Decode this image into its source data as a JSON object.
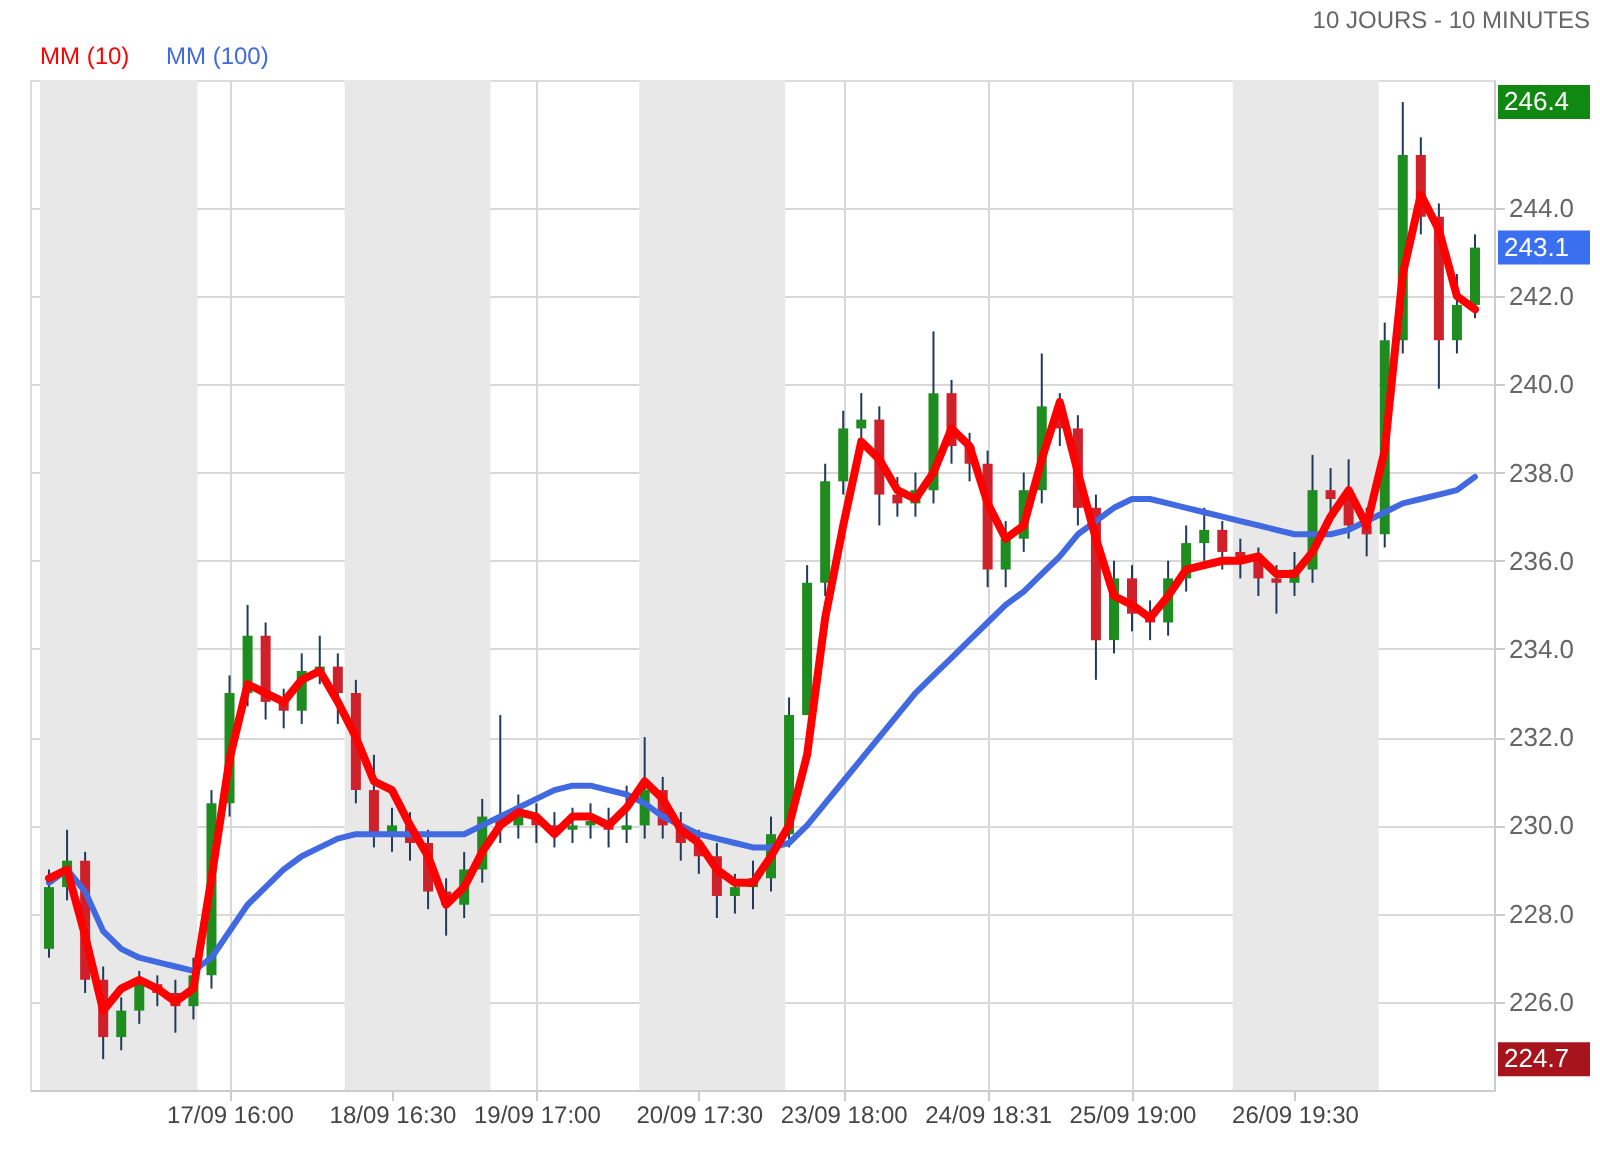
{
  "chart_data": {
    "type": "candlestick",
    "annotations": [
      "10 JOURS - 10 MINUTES",
      "246.4",
      "243.1",
      "224.7"
    ],
    "categories": [
      null,
      null,
      null,
      null,
      null,
      null,
      null,
      null,
      null,
      null,
      "17/09 16:00",
      null,
      null,
      null,
      null,
      null,
      null,
      null,
      null,
      "18/09 16:30",
      null,
      null,
      null,
      null,
      null,
      null,
      null,
      "19/09 17:00",
      null,
      null,
      null,
      null,
      null,
      null,
      null,
      null,
      "20/09 17:30",
      null,
      null,
      null,
      null,
      null,
      null,
      null,
      "23/09 18:00",
      null,
      null,
      null,
      null,
      null,
      null,
      null,
      "24/09 18:31",
      null,
      null,
      null,
      null,
      null,
      null,
      null,
      "25/09 19:00",
      null,
      null,
      null,
      null,
      null,
      null,
      null,
      null,
      "26/09 19:30",
      null,
      null,
      null,
      null,
      null,
      null,
      null,
      null,
      null,
      null
    ],
    "ohlc": [
      [
        227.2,
        229.0,
        227.0,
        228.6
      ],
      [
        228.6,
        229.9,
        228.3,
        229.2
      ],
      [
        229.2,
        229.4,
        226.2,
        226.5
      ],
      [
        226.5,
        226.8,
        224.7,
        225.2
      ],
      [
        225.2,
        226.1,
        224.9,
        225.8
      ],
      [
        225.8,
        226.7,
        225.5,
        226.4
      ],
      [
        226.4,
        226.6,
        225.9,
        226.2
      ],
      [
        226.2,
        226.5,
        225.3,
        225.9
      ],
      [
        225.9,
        227.0,
        225.6,
        226.6
      ],
      [
        226.6,
        230.8,
        226.3,
        230.5
      ],
      [
        230.5,
        233.4,
        230.2,
        233.0
      ],
      [
        233.0,
        235.0,
        232.7,
        234.3
      ],
      [
        234.3,
        234.6,
        232.4,
        232.8
      ],
      [
        232.8,
        233.1,
        232.2,
        232.6
      ],
      [
        232.6,
        233.9,
        232.3,
        233.5
      ],
      [
        233.5,
        234.3,
        233.2,
        233.6
      ],
      [
        233.6,
        233.9,
        232.3,
        233.0
      ],
      [
        233.0,
        233.3,
        230.5,
        230.8
      ],
      [
        230.8,
        231.6,
        229.5,
        229.8
      ],
      [
        229.8,
        230.4,
        229.4,
        230.0
      ],
      [
        230.0,
        230.3,
        229.2,
        229.6
      ],
      [
        229.6,
        229.9,
        228.1,
        228.5
      ],
      [
        228.5,
        228.8,
        227.5,
        228.2
      ],
      [
        228.2,
        229.4,
        227.9,
        229.0
      ],
      [
        229.0,
        230.6,
        228.7,
        230.2
      ],
      [
        230.2,
        232.5,
        229.6,
        230.0
      ],
      [
        230.0,
        230.7,
        229.7,
        230.2
      ],
      [
        230.2,
        230.5,
        229.6,
        230.0
      ],
      [
        230.0,
        230.3,
        229.5,
        229.9
      ],
      [
        229.9,
        230.4,
        229.6,
        230.0
      ],
      [
        230.0,
        230.5,
        229.7,
        230.1
      ],
      [
        230.1,
        230.4,
        229.5,
        229.9
      ],
      [
        229.9,
        230.9,
        229.6,
        230.0
      ],
      [
        230.0,
        232.0,
        229.7,
        230.8
      ],
      [
        230.8,
        231.1,
        229.7,
        230.0
      ],
      [
        230.0,
        230.3,
        229.2,
        229.6
      ],
      [
        229.6,
        229.9,
        228.9,
        229.3
      ],
      [
        229.3,
        229.6,
        227.9,
        228.4
      ],
      [
        228.4,
        228.9,
        228.0,
        228.6
      ],
      [
        228.6,
        229.2,
        228.1,
        228.8
      ],
      [
        228.8,
        230.2,
        228.5,
        229.8
      ],
      [
        229.8,
        232.9,
        229.5,
        232.5
      ],
      [
        232.5,
        235.9,
        232.5,
        235.5
      ],
      [
        235.5,
        238.2,
        235.2,
        237.8
      ],
      [
        237.8,
        239.4,
        237.5,
        239.0
      ],
      [
        239.0,
        239.8,
        238.7,
        239.2
      ],
      [
        239.2,
        239.5,
        236.8,
        237.5
      ],
      [
        237.5,
        237.9,
        237.0,
        237.3
      ],
      [
        237.3,
        238.0,
        237.0,
        237.6
      ],
      [
        237.6,
        241.2,
        237.3,
        239.8
      ],
      [
        239.8,
        240.1,
        238.2,
        238.6
      ],
      [
        238.6,
        238.9,
        237.8,
        238.2
      ],
      [
        238.2,
        238.5,
        235.4,
        235.8
      ],
      [
        235.8,
        236.9,
        235.4,
        236.5
      ],
      [
        236.5,
        238.0,
        236.2,
        237.6
      ],
      [
        237.6,
        240.7,
        237.3,
        239.5
      ],
      [
        239.5,
        239.8,
        238.6,
        239.0
      ],
      [
        239.0,
        239.3,
        236.8,
        237.2
      ],
      [
        237.2,
        237.5,
        233.3,
        234.2
      ],
      [
        234.2,
        236.0,
        233.9,
        235.6
      ],
      [
        235.6,
        235.9,
        234.4,
        234.8
      ],
      [
        234.8,
        235.1,
        234.2,
        234.6
      ],
      [
        234.6,
        236.0,
        234.3,
        235.6
      ],
      [
        235.6,
        236.8,
        235.3,
        236.4
      ],
      [
        236.4,
        237.2,
        236.0,
        236.7
      ],
      [
        236.7,
        236.9,
        235.8,
        236.2
      ],
      [
        236.2,
        236.5,
        235.6,
        236.0
      ],
      [
        236.0,
        236.3,
        235.2,
        235.6
      ],
      [
        235.6,
        235.9,
        234.8,
        235.5
      ],
      [
        235.5,
        236.2,
        235.2,
        235.8
      ],
      [
        235.8,
        238.4,
        235.5,
        237.6
      ],
      [
        237.6,
        238.1,
        237.0,
        237.4
      ],
      [
        237.4,
        238.3,
        236.5,
        236.8
      ],
      [
        236.8,
        237.2,
        236.1,
        236.6
      ],
      [
        236.6,
        241.4,
        236.3,
        241.0
      ],
      [
        241.0,
        246.4,
        240.7,
        245.2
      ],
      [
        245.2,
        245.6,
        243.4,
        243.8
      ],
      [
        243.8,
        244.1,
        239.9,
        241.0
      ],
      [
        241.0,
        242.5,
        240.7,
        241.8
      ],
      [
        241.8,
        243.4,
        241.5,
        243.1
      ]
    ],
    "series": [
      {
        "name": "MM (10)",
        "type": "line",
        "color": "#ff0000",
        "values": [
          228.8,
          229.0,
          227.5,
          225.8,
          226.3,
          226.5,
          226.3,
          226.0,
          226.3,
          228.8,
          231.5,
          233.2,
          233.0,
          232.8,
          233.3,
          233.5,
          232.8,
          232.0,
          231.0,
          230.8,
          230.0,
          229.3,
          228.2,
          228.6,
          229.4,
          230.0,
          230.3,
          230.2,
          229.8,
          230.2,
          230.2,
          230.0,
          230.4,
          231.0,
          230.6,
          229.9,
          229.6,
          229.0,
          228.7,
          228.7,
          229.3,
          230.0,
          231.6,
          234.7,
          236.8,
          238.7,
          238.3,
          237.6,
          237.4,
          238.0,
          239.0,
          238.6,
          237.3,
          236.5,
          236.8,
          238.3,
          239.6,
          238.0,
          236.5,
          235.2,
          235.0,
          234.7,
          235.2,
          235.8,
          235.9,
          236.0,
          236.0,
          236.1,
          235.7,
          235.7,
          236.2,
          237.0,
          237.6,
          236.8,
          238.5,
          242.5,
          244.3,
          243.5,
          242.0,
          241.7
        ]
      },
      {
        "name": "MM (100)",
        "type": "line",
        "color": "#4169e1",
        "values": [
          228.7,
          229.0,
          228.5,
          227.6,
          227.2,
          227.0,
          226.9,
          226.8,
          226.7,
          227.0,
          227.6,
          228.2,
          228.6,
          229.0,
          229.3,
          229.5,
          229.7,
          229.8,
          229.8,
          229.8,
          229.8,
          229.8,
          229.8,
          229.8,
          230.0,
          230.2,
          230.4,
          230.6,
          230.8,
          230.9,
          230.9,
          230.8,
          230.7,
          230.5,
          230.2,
          230.0,
          229.8,
          229.7,
          229.6,
          229.5,
          229.5,
          229.6,
          230.0,
          230.5,
          231.0,
          231.5,
          232.0,
          232.5,
          233.0,
          233.4,
          233.8,
          234.2,
          234.6,
          235.0,
          235.3,
          235.7,
          236.1,
          236.6,
          236.9,
          237.2,
          237.4,
          237.4,
          237.3,
          237.2,
          237.1,
          237.0,
          236.9,
          236.8,
          236.7,
          236.6,
          236.6,
          236.6,
          236.7,
          236.9,
          237.1,
          237.3,
          237.4,
          237.5,
          237.6,
          237.9
        ]
      }
    ],
    "ylim": [
      224.0,
      246.9
    ],
    "yticks": [
      {
        "value": 226,
        "label": "226.0"
      },
      {
        "value": 228,
        "label": "228.0"
      },
      {
        "value": 230,
        "label": "230.0"
      },
      {
        "value": 232,
        "label": "232.0"
      },
      {
        "value": 234,
        "label": "234.0"
      },
      {
        "value": 236,
        "label": "236.0"
      },
      {
        "value": 238,
        "label": "238.0"
      },
      {
        "value": 240,
        "label": "240.0"
      },
      {
        "value": 242,
        "label": "242.0"
      },
      {
        "value": 244,
        "label": "244.0"
      }
    ],
    "grid": true,
    "legend": "top left",
    "marker": "none",
    "line_style": "solid"
  }
}
